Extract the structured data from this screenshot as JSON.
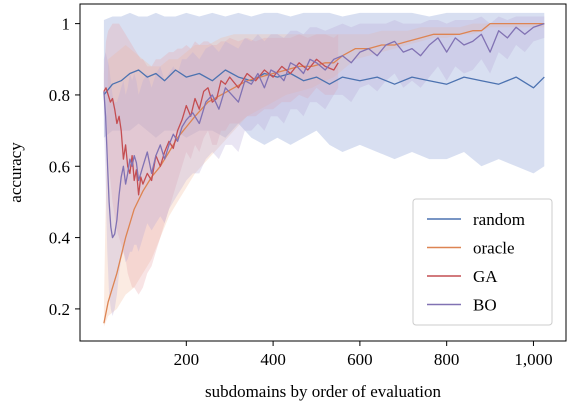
{
  "chart_data": {
    "type": "line",
    "title": "",
    "xlabel": "subdomains by order of evaluation",
    "ylabel": "accuracy",
    "xlim": [
      -45,
      1075
    ],
    "ylim": [
      0.11,
      1.055
    ],
    "xticks": [
      {
        "value": 200,
        "label": "200"
      },
      {
        "value": 400,
        "label": "400"
      },
      {
        "value": 600,
        "label": "600"
      },
      {
        "value": 800,
        "label": "800"
      },
      {
        "value": 1000,
        "label": "1,000"
      }
    ],
    "yticks": [
      {
        "value": 0.2,
        "label": "0.2"
      },
      {
        "value": 0.4,
        "label": "0.4"
      },
      {
        "value": 0.6,
        "label": "0.6"
      },
      {
        "value": 0.8,
        "label": "0.8"
      },
      {
        "value": 1.0,
        "label": "1"
      }
    ],
    "grid": false,
    "legend_position": "bottom-right",
    "series": [
      {
        "name": "random",
        "color": "#4c72b0",
        "band_color": "#8fa3d6",
        "x": [
          10,
          30,
          50,
          70,
          90,
          110,
          130,
          150,
          175,
          200,
          230,
          260,
          290,
          320,
          350,
          380,
          410,
          440,
          470,
          500,
          530,
          560,
          600,
          640,
          680,
          720,
          760,
          800,
          840,
          880,
          920,
          960,
          1000,
          1025
        ],
        "y": [
          0.8,
          0.83,
          0.84,
          0.86,
          0.87,
          0.85,
          0.86,
          0.84,
          0.87,
          0.85,
          0.86,
          0.84,
          0.87,
          0.85,
          0.84,
          0.86,
          0.85,
          0.86,
          0.84,
          0.85,
          0.83,
          0.85,
          0.84,
          0.85,
          0.83,
          0.85,
          0.84,
          0.83,
          0.85,
          0.84,
          0.83,
          0.85,
          0.82,
          0.85
        ],
        "lower": [
          0.68,
          0.7,
          0.7,
          0.7,
          0.72,
          0.7,
          0.68,
          0.7,
          0.7,
          0.68,
          0.7,
          0.7,
          0.68,
          0.72,
          0.68,
          0.66,
          0.68,
          0.66,
          0.68,
          0.7,
          0.66,
          0.64,
          0.66,
          0.64,
          0.62,
          0.64,
          0.62,
          0.62,
          0.64,
          0.6,
          0.62,
          0.6,
          0.58,
          0.6
        ],
        "upper": [
          1.01,
          1.02,
          1.02,
          1.03,
          1.02,
          1.02,
          1.03,
          1.02,
          1.02,
          1.03,
          1.02,
          1.03,
          1.02,
          1.03,
          1.02,
          1.03,
          1.03,
          1.02,
          1.03,
          1.03,
          1.03,
          1.02,
          1.03,
          1.03,
          1.03,
          1.03,
          1.02,
          1.03,
          1.03,
          1.03,
          1.03,
          1.03,
          1.03,
          1.03
        ]
      },
      {
        "name": "oracle",
        "color": "#dd8452",
        "band_color": "#f3bea0",
        "x": [
          10,
          20,
          40,
          60,
          80,
          100,
          120,
          140,
          160,
          180,
          200,
          220,
          250,
          280,
          310,
          340,
          370,
          400,
          430,
          460,
          490,
          520,
          540,
          560,
          590,
          620,
          650,
          680,
          710,
          740,
          770,
          800,
          830,
          860,
          880,
          900,
          930,
          960,
          990,
          1025
        ],
        "y": [
          0.16,
          0.22,
          0.3,
          0.4,
          0.48,
          0.53,
          0.57,
          0.6,
          0.64,
          0.68,
          0.71,
          0.74,
          0.78,
          0.8,
          0.82,
          0.84,
          0.85,
          0.86,
          0.87,
          0.88,
          0.88,
          0.89,
          0.89,
          0.91,
          0.93,
          0.93,
          0.94,
          0.94,
          0.95,
          0.96,
          0.97,
          0.97,
          0.97,
          0.98,
          0.98,
          1.0,
          1.0,
          1.0,
          1.0,
          1.0
        ],
        "lower": [
          0.15,
          0.18,
          0.2,
          0.24,
          0.26,
          0.3,
          0.34,
          0.4,
          0.46,
          0.5,
          0.54,
          0.58,
          0.62,
          0.66,
          0.7,
          0.74,
          0.76,
          0.78,
          0.8,
          0.81,
          0.82,
          0.84,
          0.85,
          0.87,
          0.9,
          0.91,
          0.92,
          0.93,
          0.94,
          0.95,
          0.96,
          0.96,
          0.97,
          0.97,
          0.98,
          0.99,
          0.99,
          0.99,
          0.99,
          0.99
        ],
        "upper": [
          0.2,
          0.9,
          0.92,
          0.94,
          0.92,
          0.9,
          0.88,
          0.88,
          0.9,
          0.9,
          0.92,
          0.94,
          0.94,
          0.96,
          0.97,
          0.97,
          0.97,
          0.97,
          0.97,
          0.97,
          0.97,
          0.97,
          0.97,
          0.97,
          0.97,
          0.97,
          0.98,
          0.98,
          0.98,
          0.99,
          0.99,
          0.99,
          0.99,
          1.0,
          1.0,
          1.0,
          1.0,
          1.0,
          1.0,
          1.0
        ]
      },
      {
        "name": "GA",
        "color": "#c44e52",
        "band_color": "#e8a6a8",
        "x": [
          10,
          15,
          20,
          25,
          30,
          35,
          40,
          45,
          50,
          55,
          60,
          65,
          70,
          75,
          80,
          85,
          90,
          95,
          100,
          110,
          120,
          130,
          140,
          150,
          160,
          170,
          180,
          190,
          200,
          210,
          220,
          230,
          240,
          250,
          260,
          270,
          280,
          290,
          300,
          320,
          340,
          360,
          380,
          400,
          420,
          440,
          460,
          480,
          500,
          520,
          540,
          550
        ],
        "y": [
          0.81,
          0.82,
          0.8,
          0.78,
          0.79,
          0.76,
          0.72,
          0.74,
          0.7,
          0.62,
          0.66,
          0.6,
          0.58,
          0.63,
          0.56,
          0.59,
          0.52,
          0.57,
          0.55,
          0.58,
          0.56,
          0.63,
          0.6,
          0.64,
          0.67,
          0.65,
          0.7,
          0.73,
          0.77,
          0.74,
          0.79,
          0.76,
          0.81,
          0.82,
          0.78,
          0.79,
          0.84,
          0.83,
          0.85,
          0.82,
          0.86,
          0.84,
          0.87,
          0.85,
          0.88,
          0.86,
          0.89,
          0.87,
          0.9,
          0.88,
          0.87,
          0.89
        ],
        "lower": [
          0.78,
          0.7,
          0.62,
          0.56,
          0.5,
          0.46,
          0.42,
          0.4,
          0.38,
          0.36,
          0.34,
          0.3,
          0.28,
          0.26,
          0.26,
          0.25,
          0.24,
          0.25,
          0.26,
          0.3,
          0.32,
          0.36,
          0.4,
          0.44,
          0.48,
          0.52,
          0.56,
          0.6,
          0.64,
          0.62,
          0.66,
          0.64,
          0.68,
          0.7,
          0.66,
          0.66,
          0.7,
          0.7,
          0.72,
          0.72,
          0.74,
          0.74,
          0.76,
          0.76,
          0.78,
          0.78,
          0.8,
          0.79,
          0.82,
          0.8,
          0.8,
          0.82
        ],
        "upper": [
          0.86,
          0.95,
          0.98,
          0.99,
          1.0,
          1.0,
          1.0,
          1.0,
          0.99,
          0.98,
          0.97,
          0.96,
          0.95,
          0.94,
          0.93,
          0.92,
          0.91,
          0.9,
          0.9,
          0.88,
          0.88,
          0.9,
          0.9,
          0.91,
          0.92,
          0.92,
          0.93,
          0.93,
          0.94,
          0.93,
          0.95,
          0.94,
          0.95,
          0.95,
          0.94,
          0.94,
          0.95,
          0.95,
          0.96,
          0.95,
          0.96,
          0.95,
          0.96,
          0.96,
          0.96,
          0.96,
          0.97,
          0.96,
          0.97,
          0.97,
          0.96,
          0.97
        ]
      },
      {
        "name": "BO",
        "color": "#8172b3",
        "band_color": "#b5aad6",
        "x": [
          10,
          14,
          18,
          22,
          26,
          30,
          35,
          40,
          45,
          50,
          55,
          60,
          65,
          70,
          75,
          80,
          85,
          90,
          95,
          100,
          110,
          120,
          130,
          140,
          150,
          160,
          170,
          180,
          190,
          200,
          215,
          230,
          245,
          260,
          275,
          290,
          305,
          320,
          335,
          350,
          365,
          380,
          395,
          410,
          425,
          440,
          455,
          470,
          485,
          500,
          520,
          540,
          560,
          580,
          600,
          620,
          640,
          660,
          680,
          700,
          720,
          740,
          760,
          780,
          800,
          820,
          840,
          860,
          880,
          900,
          920,
          940,
          960,
          980,
          1000,
          1025
        ],
        "y": [
          0.81,
          0.74,
          0.62,
          0.5,
          0.43,
          0.4,
          0.41,
          0.45,
          0.52,
          0.57,
          0.6,
          0.55,
          0.58,
          0.62,
          0.6,
          0.63,
          0.61,
          0.56,
          0.58,
          0.6,
          0.64,
          0.58,
          0.63,
          0.66,
          0.62,
          0.66,
          0.69,
          0.67,
          0.71,
          0.73,
          0.75,
          0.72,
          0.78,
          0.8,
          0.76,
          0.82,
          0.8,
          0.78,
          0.84,
          0.83,
          0.86,
          0.82,
          0.87,
          0.86,
          0.84,
          0.89,
          0.88,
          0.86,
          0.9,
          0.89,
          0.87,
          0.9,
          0.91,
          0.89,
          0.92,
          0.93,
          0.91,
          0.94,
          0.95,
          0.92,
          0.93,
          0.91,
          0.94,
          0.96,
          0.92,
          0.96,
          0.94,
          0.95,
          0.97,
          0.92,
          0.98,
          0.96,
          0.99,
          0.97,
          0.99,
          1.0
        ],
        "lower": [
          0.72,
          0.56,
          0.36,
          0.24,
          0.2,
          0.18,
          0.2,
          0.24,
          0.3,
          0.34,
          0.36,
          0.33,
          0.34,
          0.36,
          0.36,
          0.38,
          0.38,
          0.36,
          0.38,
          0.4,
          0.44,
          0.42,
          0.44,
          0.46,
          0.44,
          0.48,
          0.5,
          0.52,
          0.54,
          0.56,
          0.58,
          0.58,
          0.62,
          0.64,
          0.62,
          0.66,
          0.66,
          0.64,
          0.7,
          0.7,
          0.72,
          0.7,
          0.74,
          0.74,
          0.72,
          0.76,
          0.76,
          0.74,
          0.78,
          0.78,
          0.76,
          0.8,
          0.8,
          0.78,
          0.82,
          0.83,
          0.81,
          0.84,
          0.86,
          0.82,
          0.84,
          0.82,
          0.85,
          0.88,
          0.84,
          0.88,
          0.86,
          0.87,
          0.9,
          0.86,
          0.92,
          0.9,
          0.94,
          0.92,
          0.95,
          0.96
        ],
        "upper": [
          0.9,
          0.92,
          0.9,
          0.88,
          0.84,
          0.8,
          0.78,
          0.78,
          0.8,
          0.82,
          0.84,
          0.8,
          0.82,
          0.86,
          0.84,
          0.86,
          0.84,
          0.8,
          0.82,
          0.84,
          0.86,
          0.82,
          0.86,
          0.88,
          0.84,
          0.86,
          0.88,
          0.86,
          0.9,
          0.9,
          0.92,
          0.9,
          0.93,
          0.94,
          0.92,
          0.95,
          0.94,
          0.93,
          0.96,
          0.95,
          0.97,
          0.95,
          0.97,
          0.97,
          0.96,
          0.98,
          0.98,
          0.97,
          0.99,
          0.99,
          0.98,
          0.99,
          1.0,
          0.99,
          1.0,
          1.0,
          1.0,
          1.0,
          1.01,
          1.0,
          1.0,
          1.0,
          1.01,
          1.01,
          1.0,
          1.01,
          1.01,
          1.01,
          1.02,
          1.0,
          1.02,
          1.01,
          1.02,
          1.02,
          1.02,
          1.02
        ]
      }
    ]
  }
}
